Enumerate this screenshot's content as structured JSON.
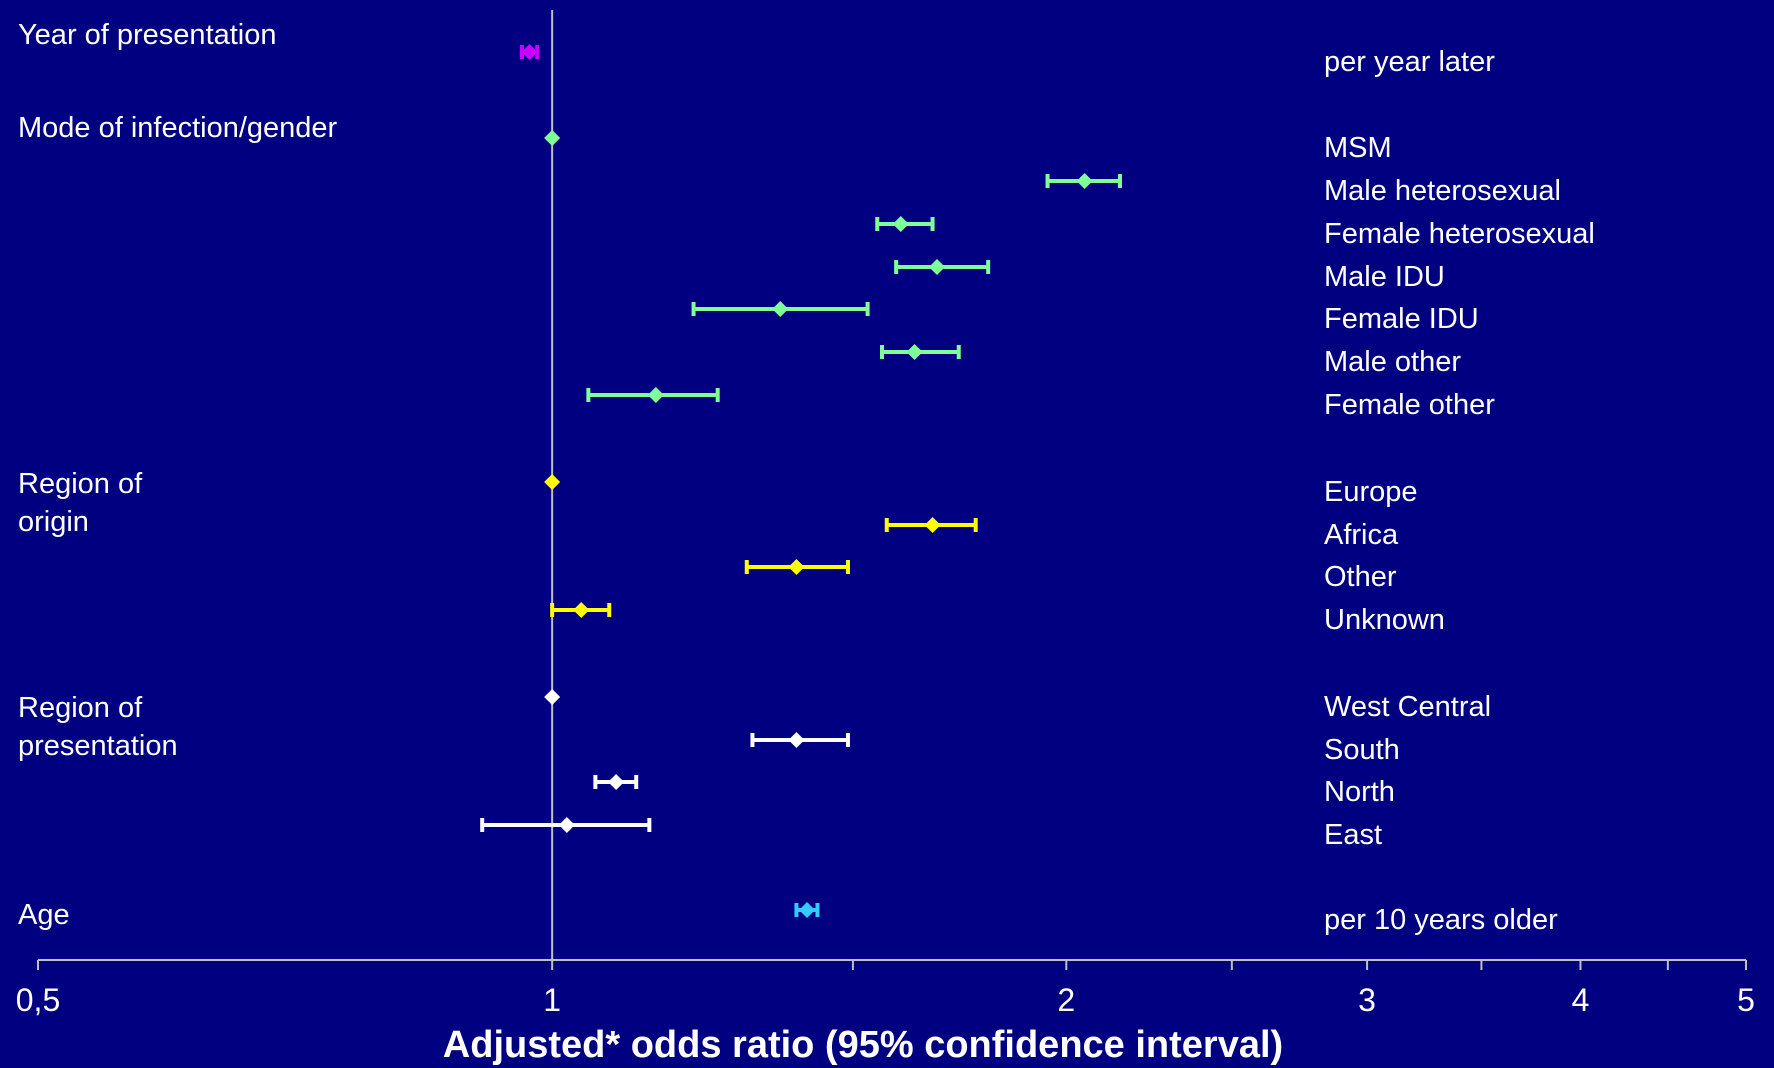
{
  "chart_data": {
    "type": "forest",
    "xlabel": "Adjusted* odds ratio (95% confidence interval)",
    "x_scale": "log",
    "xlim": [
      0.5,
      5
    ],
    "reference_line": 1,
    "x_ticks": [
      {
        "value": 0.5,
        "label": "0,5"
      },
      {
        "value": 1,
        "label": "1"
      },
      {
        "value": 1.5,
        "label": ""
      },
      {
        "value": 2,
        "label": "2"
      },
      {
        "value": 2.5,
        "label": ""
      },
      {
        "value": 3,
        "label": "3"
      },
      {
        "value": 3.5,
        "label": ""
      },
      {
        "value": 4,
        "label": "4"
      },
      {
        "value": 4.5,
        "label": ""
      },
      {
        "value": 5,
        "label": "5"
      }
    ],
    "groups": [
      {
        "name": "Year of presentation",
        "name_lines": [
          "Year of presentation"
        ],
        "color": "#cc00ff",
        "rows": [
          {
            "label": "per year later",
            "or": 0.97,
            "lo": 0.96,
            "hi": 0.98
          }
        ]
      },
      {
        "name": "Mode of infection/gender",
        "name_lines": [
          "Mode of infection/gender"
        ],
        "color": "#80ff99",
        "rows": [
          {
            "label": "MSM",
            "or": 1.0,
            "lo": null,
            "hi": null
          },
          {
            "label": "Male heterosexual",
            "or": 2.05,
            "lo": 1.95,
            "hi": 2.15
          },
          {
            "label": "Female heterosexual",
            "or": 1.6,
            "lo": 1.55,
            "hi": 1.67
          },
          {
            "label": "Male IDU",
            "or": 1.68,
            "lo": 1.59,
            "hi": 1.8
          },
          {
            "label": "Female IDU",
            "or": 1.36,
            "lo": 1.21,
            "hi": 1.53
          },
          {
            "label": "Male other",
            "or": 1.63,
            "lo": 1.56,
            "hi": 1.73
          },
          {
            "label": "Female other",
            "or": 1.15,
            "lo": 1.05,
            "hi": 1.25
          }
        ]
      },
      {
        "name": "Region of origin",
        "name_lines": [
          "Region of",
          "origin"
        ],
        "color": "#ffff00",
        "rows": [
          {
            "label": "Europe",
            "or": 1.0,
            "lo": null,
            "hi": null
          },
          {
            "label": "Africa",
            "or": 1.67,
            "lo": 1.57,
            "hi": 1.77
          },
          {
            "label": "Other",
            "or": 1.39,
            "lo": 1.3,
            "hi": 1.49
          },
          {
            "label": "Unknown",
            "or": 1.04,
            "lo": 1.0,
            "hi": 1.08
          }
        ]
      },
      {
        "name": "Region of presentation",
        "name_lines": [
          "Region of",
          "presentation"
        ],
        "color": "#ffffff",
        "rows": [
          {
            "label": "West Central",
            "or": 1.0,
            "lo": null,
            "hi": null
          },
          {
            "label": "South",
            "or": 1.39,
            "lo": 1.31,
            "hi": 1.49
          },
          {
            "label": "North",
            "or": 1.09,
            "lo": 1.06,
            "hi": 1.12
          },
          {
            "label": "East",
            "or": 1.02,
            "lo": 0.91,
            "hi": 1.14
          }
        ]
      },
      {
        "name": "Age",
        "name_lines": [
          "Age"
        ],
        "color": "#33ccff",
        "rows": [
          {
            "label": "per 10 years older",
            "or": 1.41,
            "lo": 1.39,
            "hi": 1.43
          }
        ]
      }
    ]
  }
}
